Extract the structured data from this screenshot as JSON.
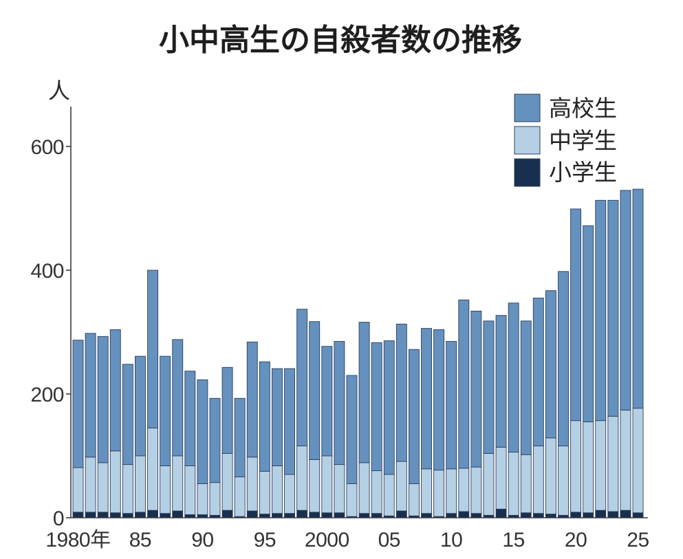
{
  "chart_data": {
    "type": "bar",
    "stacked": true,
    "title": "小中高生の自殺者数の推移",
    "xlabel": "",
    "ylabel": "人",
    "ylim": [
      0,
      660
    ],
    "yticks": [
      0,
      200,
      400,
      600
    ],
    "ytick_labels": [
      "0",
      "200",
      "400",
      "600"
    ],
    "grid": false,
    "legend_position": "top-right",
    "x": [
      1980,
      1981,
      1982,
      1983,
      1984,
      1985,
      1986,
      1987,
      1988,
      1989,
      1990,
      1991,
      1992,
      1993,
      1994,
      1995,
      1996,
      1997,
      1998,
      1999,
      2000,
      2001,
      2002,
      2003,
      2004,
      2005,
      2006,
      2007,
      2008,
      2009,
      2010,
      2011,
      2012,
      2013,
      2014,
      2015,
      2016,
      2017,
      2018,
      2019,
      2020,
      2021,
      2022,
      2023,
      2024,
      2025
    ],
    "xtick_labels": [
      {
        "year": 1980,
        "label": "1980年"
      },
      {
        "year": 1985,
        "label": "85"
      },
      {
        "year": 1990,
        "label": "90"
      },
      {
        "year": 1995,
        "label": "95"
      },
      {
        "year": 2000,
        "label": "2000"
      },
      {
        "year": 2005,
        "label": "05"
      },
      {
        "year": 2010,
        "label": "10"
      },
      {
        "year": 2015,
        "label": "15"
      },
      {
        "year": 2020,
        "label": "20"
      },
      {
        "year": 2025,
        "label": "25"
      }
    ],
    "series": [
      {
        "name": "高校生",
        "color": "#6591bf",
        "values": [
          206,
          200,
          204,
          196,
          162,
          161,
          255,
          177,
          188,
          153,
          168,
          136,
          139,
          127,
          186,
          177,
          157,
          171,
          221,
          223,
          177,
          199,
          175,
          227,
          207,
          216,
          222,
          217,
          227,
          227,
          206,
          272,
          252,
          214,
          213,
          241,
          216,
          239,
          238,
          282,
          342,
          317,
          356,
          349,
          355,
          354
        ]
      },
      {
        "name": "中学生",
        "color": "#b5d0e4",
        "values": [
          72,
          89,
          80,
          100,
          79,
          91,
          133,
          77,
          89,
          79,
          50,
          53,
          92,
          64,
          87,
          69,
          77,
          63,
          104,
          85,
          92,
          78,
          53,
          82,
          69,
          67,
          80,
          52,
          72,
          75,
          72,
          70,
          75,
          100,
          100,
          102,
          94,
          109,
          123,
          112,
          148,
          147,
          145,
          154,
          162,
          169
        ]
      },
      {
        "name": "小学生",
        "color": "#18304f",
        "values": [
          9,
          9,
          9,
          8,
          7,
          9,
          12,
          7,
          11,
          5,
          5,
          4,
          12,
          2,
          11,
          6,
          7,
          7,
          12,
          9,
          8,
          8,
          2,
          7,
          7,
          3,
          11,
          3,
          7,
          2,
          7,
          10,
          7,
          4,
          14,
          4,
          8,
          7,
          6,
          4,
          9,
          8,
          12,
          10,
          12,
          8
        ]
      }
    ],
    "bar_outline_color": "#2d3e5a"
  }
}
